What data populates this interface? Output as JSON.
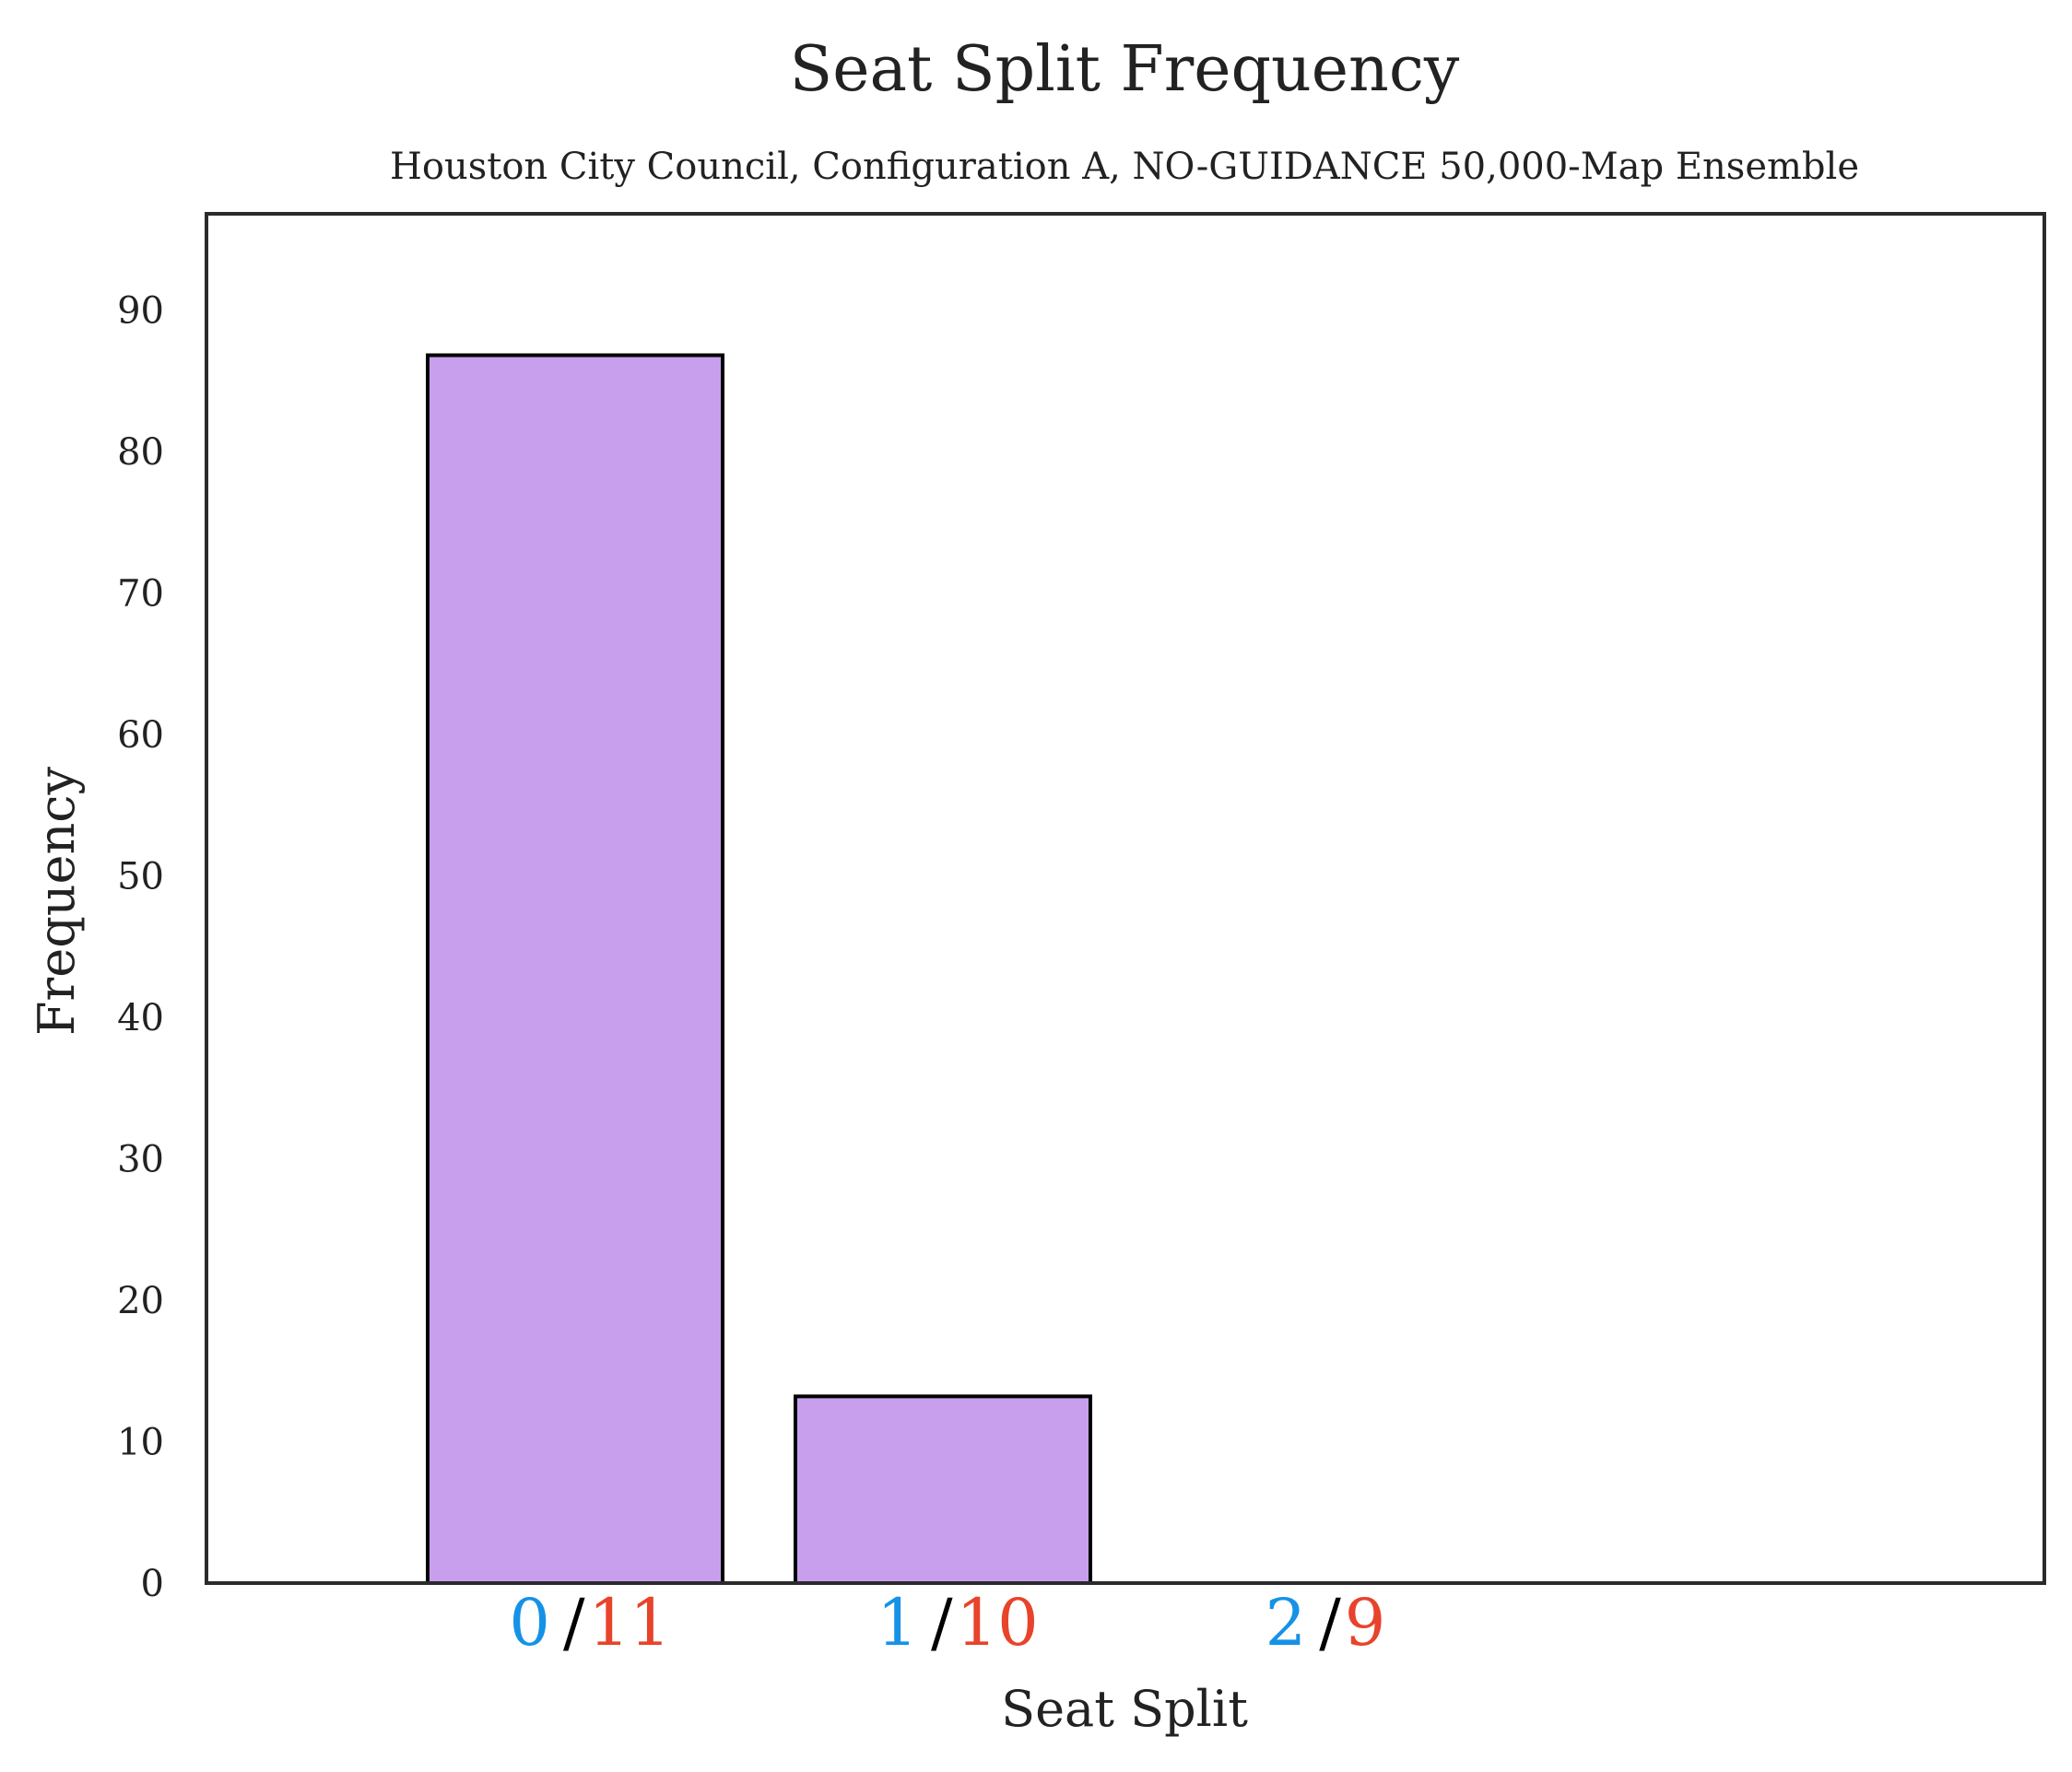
{
  "chart_data": {
    "type": "bar",
    "title": "Seat Split Frequency",
    "subtitle": "Houston City Council, Configuration A, NO-GUIDANCE 50,000-Map Ensemble",
    "xlabel": "Seat Split",
    "ylabel": "Frequency",
    "categories": [
      {
        "blue": "0",
        "sep": "/",
        "red": "11"
      },
      {
        "blue": "1",
        "sep": "/",
        "red": "10"
      },
      {
        "blue": "2",
        "sep": "/",
        "red": "9"
      }
    ],
    "values": [
      86.8,
      13.2,
      0
    ],
    "ylim": [
      0,
      96.8
    ],
    "yticks": [
      "0",
      "10",
      "20",
      "30",
      "40",
      "50",
      "60",
      "70",
      "80",
      "90"
    ],
    "grid": false,
    "colors": {
      "bar_fill": "#c79fed",
      "bar_edge": "#000000",
      "blue_label": "#1592e6",
      "red_label": "#e8432b",
      "text": "#222222",
      "axes": "#2b2b2b"
    }
  }
}
